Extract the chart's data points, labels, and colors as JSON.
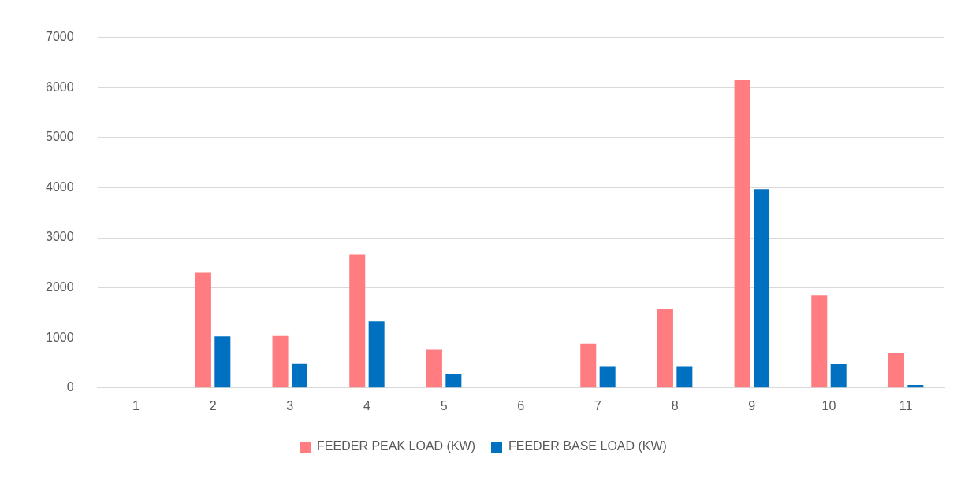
{
  "chart_data": {
    "type": "bar",
    "categories": [
      "1",
      "2",
      "3",
      "4",
      "5",
      "6",
      "7",
      "8",
      "9",
      "10",
      "11"
    ],
    "series": [
      {
        "name": "FEEDER PEAK LOAD (KW)",
        "color": "#ff7c80",
        "values": [
          0,
          2300,
          1040,
          2660,
          760,
          0,
          880,
          1580,
          6150,
          1850,
          700
        ]
      },
      {
        "name": "FEEDER BASE LOAD (KW)",
        "color": "#0070c0",
        "values": [
          0,
          1030,
          490,
          1330,
          280,
          0,
          430,
          430,
          3970,
          470,
          60
        ]
      }
    ],
    "ylim": [
      0,
      7000
    ],
    "yticks": [
      0,
      1000,
      2000,
      3000,
      4000,
      5000,
      6000,
      7000
    ],
    "grid": "y",
    "legend": "bottom"
  }
}
